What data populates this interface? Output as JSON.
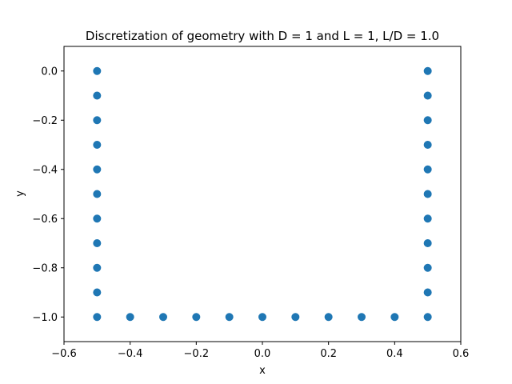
{
  "chart_data": {
    "type": "scatter",
    "title": "Discretization of geometry with D = 1 and L = 1, L/D = 1.0",
    "xlabel": "x",
    "ylabel": "y",
    "xlim": [
      -0.6,
      0.6
    ],
    "ylim": [
      -1.1,
      0.1
    ],
    "xticks": [
      -0.6,
      -0.4,
      -0.2,
      0.0,
      0.2,
      0.4,
      0.6
    ],
    "xtick_labels": [
      "−0.6",
      "−0.4",
      "−0.2",
      "0.0",
      "0.2",
      "0.4",
      "0.6"
    ],
    "yticks": [
      0.0,
      -0.2,
      -0.4,
      -0.6,
      -0.8,
      -1.0
    ],
    "ytick_labels": [
      "0.0",
      "−0.2",
      "−0.4",
      "−0.6",
      "−0.8",
      "−1.0"
    ],
    "grid": false,
    "marker_color": "#1f77b4",
    "series": [
      {
        "points": [
          [
            -0.5,
            0.0
          ],
          [
            -0.5,
            -0.1
          ],
          [
            -0.5,
            -0.2
          ],
          [
            -0.5,
            -0.3
          ],
          [
            -0.5,
            -0.4
          ],
          [
            -0.5,
            -0.5
          ],
          [
            -0.5,
            -0.6
          ],
          [
            -0.5,
            -0.7
          ],
          [
            -0.5,
            -0.8
          ],
          [
            -0.5,
            -0.9
          ],
          [
            -0.5,
            -1.0
          ],
          [
            -0.4,
            -1.0
          ],
          [
            -0.3,
            -1.0
          ],
          [
            -0.2,
            -1.0
          ],
          [
            -0.1,
            -1.0
          ],
          [
            0.0,
            -1.0
          ],
          [
            0.1,
            -1.0
          ],
          [
            0.2,
            -1.0
          ],
          [
            0.3,
            -1.0
          ],
          [
            0.4,
            -1.0
          ],
          [
            0.5,
            -1.0
          ],
          [
            0.5,
            -0.9
          ],
          [
            0.5,
            -0.8
          ],
          [
            0.5,
            -0.7
          ],
          [
            0.5,
            -0.6
          ],
          [
            0.5,
            -0.5
          ],
          [
            0.5,
            -0.4
          ],
          [
            0.5,
            -0.3
          ],
          [
            0.5,
            -0.2
          ],
          [
            0.5,
            -0.1
          ],
          [
            0.5,
            0.0
          ]
        ]
      }
    ]
  }
}
